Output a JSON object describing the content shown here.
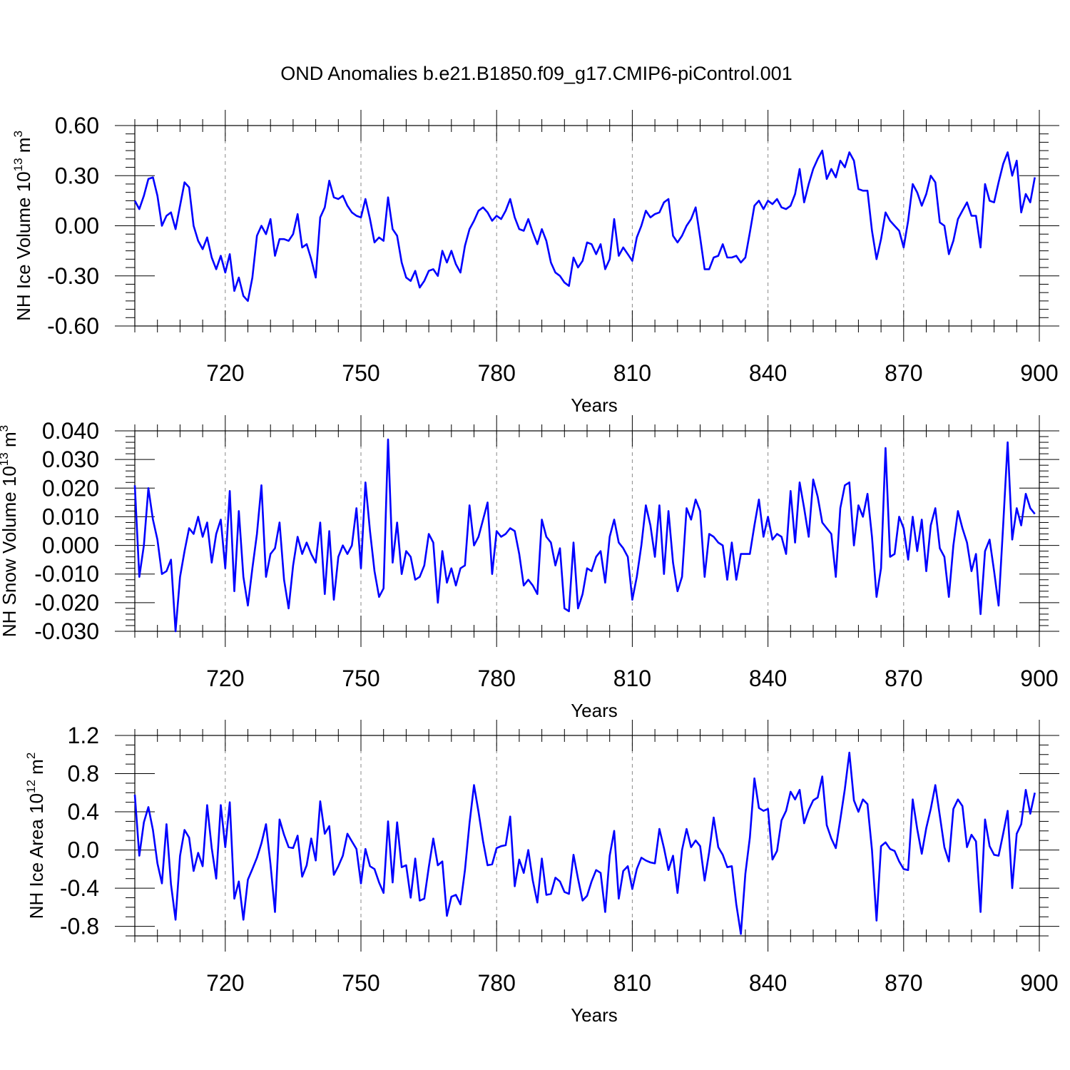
{
  "title": "OND Anomalies b.e21.B1850.f09_g17.CMIP6-piControl.001",
  "colors": {
    "series": "#0000ff",
    "axis": "#000000",
    "grid": "#888888"
  },
  "chart_data": [
    {
      "type": "line",
      "ylabel_main": "NH Ice Volume 10",
      "ylabel_exp": "13",
      "ylabel_unit": " m",
      "ylabel_unit_exp": "3",
      "xlabel": "Years",
      "xlim": [
        700,
        900
      ],
      "ylim": [
        -0.6,
        0.6
      ],
      "xticks": [
        720,
        750,
        780,
        810,
        840,
        870,
        900
      ],
      "yticks": [
        -0.6,
        -0.3,
        0.0,
        0.3,
        0.6
      ],
      "ytick_labels": [
        "-0.60",
        "-0.30",
        "0.00",
        "0.30",
        "0.60"
      ],
      "yminor": 0.05,
      "x_start": 700,
      "values": [
        0.15,
        0.1,
        0.18,
        0.28,
        0.29,
        0.18,
        0.0,
        0.06,
        0.08,
        -0.02,
        0.12,
        0.26,
        0.23,
        0.0,
        -0.09,
        -0.14,
        -0.07,
        -0.19,
        -0.26,
        -0.18,
        -0.28,
        -0.17,
        -0.39,
        -0.31,
        -0.42,
        -0.45,
        -0.31,
        -0.06,
        0.0,
        -0.05,
        0.04,
        -0.18,
        -0.08,
        -0.08,
        -0.09,
        -0.05,
        0.07,
        -0.13,
        -0.11,
        -0.2,
        -0.31,
        0.05,
        0.11,
        0.27,
        0.17,
        0.16,
        0.18,
        0.12,
        0.08,
        0.06,
        0.05,
        0.16,
        0.04,
        -0.1,
        -0.07,
        -0.09,
        0.17,
        -0.02,
        -0.06,
        -0.22,
        -0.31,
        -0.33,
        -0.27,
        -0.37,
        -0.33,
        -0.27,
        -0.26,
        -0.3,
        -0.15,
        -0.22,
        -0.15,
        -0.23,
        -0.28,
        -0.12,
        -0.02,
        0.03,
        0.09,
        0.11,
        0.08,
        0.03,
        0.06,
        0.04,
        0.09,
        0.16,
        0.05,
        -0.02,
        -0.03,
        0.04,
        -0.04,
        -0.11,
        -0.02,
        -0.09,
        -0.22,
        -0.28,
        -0.3,
        -0.34,
        -0.36,
        -0.19,
        -0.25,
        -0.21,
        -0.1,
        -0.11,
        -0.17,
        -0.11,
        -0.26,
        -0.2,
        0.04,
        -0.18,
        -0.13,
        -0.17,
        -0.21,
        -0.07,
        0.0,
        0.09,
        0.05,
        0.07,
        0.08,
        0.14,
        0.16,
        -0.06,
        -0.1,
        -0.06,
        0.0,
        0.04,
        0.11,
        -0.07,
        -0.26,
        -0.26,
        -0.19,
        -0.18,
        -0.11,
        -0.19,
        -0.19,
        -0.18,
        -0.22,
        -0.19,
        -0.04,
        0.12,
        0.15,
        0.1,
        0.15,
        0.13,
        0.16,
        0.11,
        0.1,
        0.12,
        0.19,
        0.34,
        0.14,
        0.25,
        0.34,
        0.4,
        0.45,
        0.28,
        0.34,
        0.29,
        0.39,
        0.35,
        0.44,
        0.39,
        0.22,
        0.21,
        0.21,
        -0.03,
        -0.2,
        -0.08,
        0.08,
        0.03,
        0.0,
        -0.03,
        -0.13,
        0.03,
        0.25,
        0.2,
        0.12,
        0.19,
        0.3,
        0.26,
        0.02,
        0.0,
        -0.17,
        -0.09,
        0.04,
        0.09,
        0.14,
        0.06,
        0.06,
        -0.13,
        0.25,
        0.15,
        0.14,
        0.26,
        0.37,
        0.44,
        0.3,
        0.39,
        0.08,
        0.19,
        0.14,
        0.29
      ]
    },
    {
      "type": "line",
      "ylabel_main": "NH Snow Volume 10",
      "ylabel_exp": "13",
      "ylabel_unit": " m",
      "ylabel_unit_exp": "3",
      "xlabel": "Years",
      "xlim": [
        700,
        900
      ],
      "ylim": [
        -0.03,
        0.04
      ],
      "xticks": [
        720,
        750,
        780,
        810,
        840,
        870,
        900
      ],
      "yticks": [
        -0.03,
        -0.02,
        -0.01,
        0.0,
        0.01,
        0.02,
        0.03,
        0.04
      ],
      "ytick_labels": [
        "-0.030",
        "-0.020",
        "-0.010",
        "0.000",
        "0.010",
        "0.020",
        "0.030",
        "0.040"
      ],
      "yminor": 0.002,
      "x_start": 700,
      "values": [
        0.021,
        -0.011,
        0.0,
        0.02,
        0.009,
        0.002,
        -0.01,
        -0.009,
        -0.005,
        -0.03,
        -0.011,
        -0.002,
        0.006,
        0.004,
        0.01,
        0.003,
        0.008,
        -0.006,
        0.004,
        0.009,
        -0.008,
        0.019,
        -0.016,
        0.012,
        -0.011,
        -0.021,
        -0.008,
        0.004,
        0.021,
        -0.011,
        -0.003,
        -0.001,
        0.008,
        -0.012,
        -0.022,
        -0.007,
        0.003,
        -0.003,
        0.001,
        -0.003,
        -0.006,
        0.008,
        -0.017,
        0.005,
        -0.019,
        -0.004,
        0.0,
        -0.003,
        0.0,
        0.013,
        -0.008,
        0.022,
        0.005,
        -0.009,
        -0.018,
        -0.015,
        0.037,
        -0.006,
        0.008,
        -0.01,
        -0.002,
        -0.004,
        -0.012,
        -0.011,
        -0.007,
        0.004,
        0.001,
        -0.02,
        -0.002,
        -0.013,
        -0.008,
        -0.014,
        -0.008,
        -0.007,
        0.014,
        0.0,
        0.003,
        0.009,
        0.015,
        -0.01,
        0.005,
        0.003,
        0.004,
        0.006,
        0.005,
        -0.003,
        -0.014,
        -0.012,
        -0.014,
        -0.017,
        0.009,
        0.003,
        0.001,
        -0.007,
        -0.001,
        -0.022,
        -0.023,
        0.001,
        -0.022,
        -0.017,
        -0.008,
        -0.009,
        -0.004,
        -0.002,
        -0.013,
        0.003,
        0.009,
        0.001,
        -0.001,
        -0.004,
        -0.019,
        -0.011,
        0.0,
        0.014,
        0.007,
        -0.004,
        0.014,
        -0.01,
        0.012,
        -0.006,
        -0.016,
        -0.011,
        0.013,
        0.009,
        0.016,
        0.012,
        -0.011,
        0.004,
        0.003,
        0.001,
        0.0,
        -0.012,
        0.001,
        -0.012,
        -0.003,
        -0.003,
        -0.003,
        0.007,
        0.016,
        0.003,
        0.01,
        0.002,
        0.004,
        0.003,
        -0.003,
        0.019,
        0.001,
        0.022,
        0.013,
        0.003,
        0.023,
        0.017,
        0.008,
        0.006,
        0.004,
        -0.011,
        0.013,
        0.021,
        0.022,
        0.0,
        0.014,
        0.01,
        0.018,
        0.003,
        -0.018,
        -0.008,
        0.034,
        -0.004,
        -0.003,
        0.01,
        0.006,
        -0.005,
        0.01,
        -0.002,
        0.009,
        -0.009,
        0.007,
        0.013,
        -0.001,
        -0.004,
        -0.018,
        0.0,
        0.012,
        0.006,
        0.001,
        -0.009,
        -0.003,
        -0.024,
        -0.002,
        0.002,
        -0.009,
        -0.021,
        0.007,
        0.036,
        0.002,
        0.013,
        0.007,
        0.018,
        0.013,
        0.011
      ]
    },
    {
      "type": "line",
      "ylabel_main": "NH Ice Area 10",
      "ylabel_exp": "12",
      "ylabel_unit": " m",
      "ylabel_unit_exp": "2",
      "xlabel": "Years",
      "xlim": [
        700,
        900
      ],
      "ylim": [
        -0.9,
        1.2
      ],
      "xticks": [
        720,
        750,
        780,
        810,
        840,
        870,
        900
      ],
      "yticks": [
        -0.8,
        -0.4,
        0.0,
        0.4,
        0.8,
        1.2
      ],
      "ytick_labels": [
        "-0.8",
        "-0.4",
        "0.0",
        "0.4",
        "0.8",
        "1.2"
      ],
      "yminor": 0.1,
      "x_start": 700,
      "values": [
        0.58,
        -0.06,
        0.29,
        0.45,
        0.21,
        -0.14,
        -0.35,
        0.27,
        -0.36,
        -0.73,
        -0.06,
        0.21,
        0.13,
        -0.22,
        -0.03,
        -0.17,
        0.47,
        0.02,
        -0.3,
        0.47,
        0.03,
        0.5,
        -0.51,
        -0.33,
        -0.73,
        -0.31,
        -0.2,
        -0.08,
        0.07,
        0.27,
        -0.15,
        -0.65,
        0.32,
        0.16,
        0.03,
        0.02,
        0.15,
        -0.28,
        -0.16,
        0.12,
        -0.11,
        0.51,
        0.17,
        0.25,
        -0.26,
        -0.17,
        -0.06,
        0.17,
        0.09,
        0.01,
        -0.35,
        0.01,
        -0.17,
        -0.2,
        -0.34,
        -0.45,
        0.3,
        -0.34,
        0.29,
        -0.18,
        -0.16,
        -0.5,
        -0.09,
        -0.53,
        -0.51,
        -0.18,
        0.12,
        -0.16,
        -0.12,
        -0.69,
        -0.49,
        -0.47,
        -0.57,
        -0.21,
        0.28,
        0.68,
        0.4,
        0.09,
        -0.16,
        -0.15,
        0.02,
        0.04,
        0.05,
        0.35,
        -0.38,
        -0.1,
        -0.24,
        0.0,
        -0.32,
        -0.55,
        -0.09,
        -0.47,
        -0.46,
        -0.29,
        -0.33,
        -0.44,
        -0.46,
        -0.05,
        -0.3,
        -0.53,
        -0.48,
        -0.33,
        -0.21,
        -0.24,
        -0.65,
        -0.06,
        0.2,
        -0.51,
        -0.22,
        -0.17,
        -0.41,
        -0.2,
        -0.08,
        -0.11,
        -0.13,
        -0.14,
        0.22,
        0.02,
        -0.21,
        -0.06,
        -0.45,
        0.0,
        0.22,
        0.03,
        0.1,
        0.04,
        -0.32,
        -0.02,
        0.34,
        0.03,
        -0.05,
        -0.18,
        -0.17,
        -0.57,
        -0.88,
        -0.25,
        0.13,
        0.75,
        0.44,
        0.41,
        0.43,
        -0.1,
        -0.01,
        0.31,
        0.41,
        0.61,
        0.53,
        0.63,
        0.28,
        0.42,
        0.52,
        0.55,
        0.77,
        0.26,
        0.12,
        0.02,
        0.32,
        0.64,
        1.02,
        0.52,
        0.4,
        0.53,
        0.48,
        0.0,
        -0.74,
        0.04,
        0.08,
        0.01,
        -0.01,
        -0.12,
        -0.2,
        -0.21,
        0.53,
        0.22,
        -0.04,
        0.23,
        0.43,
        0.68,
        0.36,
        0.03,
        -0.12,
        0.43,
        0.53,
        0.46,
        0.03,
        0.16,
        0.09,
        -0.65,
        0.32,
        0.04,
        -0.05,
        -0.06,
        0.17,
        0.41,
        -0.4,
        0.17,
        0.27,
        0.63,
        0.38,
        0.6
      ]
    }
  ]
}
